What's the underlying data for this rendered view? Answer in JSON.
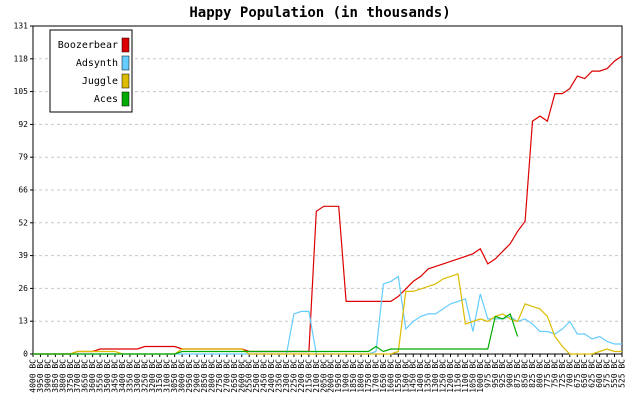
{
  "chart_data": {
    "type": "line",
    "title": "Happy Population (in thousands)",
    "categories": [
      "4000 BC",
      "3950 BC",
      "3900 BC",
      "3850 BC",
      "3800 BC",
      "3750 BC",
      "3700 BC",
      "3650 BC",
      "3600 BC",
      "3550 BC",
      "3500 BC",
      "3450 BC",
      "3400 BC",
      "3350 BC",
      "3300 BC",
      "3250 BC",
      "3200 BC",
      "3150 BC",
      "3100 BC",
      "3050 BC",
      "3000 BC",
      "2950 BC",
      "2900 BC",
      "2850 BC",
      "2800 BC",
      "2750 BC",
      "2700 BC",
      "2650 BC",
      "2600 BC",
      "2550 BC",
      "2500 BC",
      "2450 BC",
      "2400 BC",
      "2350 BC",
      "2300 BC",
      "2250 BC",
      "2200 BC",
      "2150 BC",
      "2100 BC",
      "2050 BC",
      "2000 BC",
      "1950 BC",
      "1900 BC",
      "1850 BC",
      "1800 BC",
      "1750 BC",
      "1700 BC",
      "1650 BC",
      "1600 BC",
      "1550 BC",
      "1500 BC",
      "1450 BC",
      "1400 BC",
      "1350 BC",
      "1300 BC",
      "1250 BC",
      "1200 BC",
      "1150 BC",
      "1100 BC",
      "1050 BC",
      "1000 BC",
      "975 BC",
      "950 BC",
      "925 BC",
      "900 BC",
      "875 BC",
      "850 BC",
      "825 BC",
      "800 BC",
      "775 BC",
      "750 BC",
      "725 BC",
      "700 BC",
      "675 BC",
      "650 BC",
      "625 BC",
      "600 BC",
      "575 BC",
      "550 BC",
      "525 BC"
    ],
    "series": [
      {
        "name": "Boozerbear",
        "color": "#dd0000",
        "values": [
          0,
          0,
          0,
          0,
          0,
          0,
          1,
          1,
          1,
          2,
          2,
          2,
          2,
          2,
          2,
          3,
          3,
          3,
          3,
          3,
          2,
          2,
          2,
          2,
          2,
          2,
          2,
          2,
          2,
          1,
          1,
          1,
          1,
          1,
          1,
          1,
          1,
          1,
          57,
          59,
          59,
          59,
          21,
          21,
          21,
          21,
          21,
          21,
          21,
          23,
          26,
          29,
          31,
          34,
          35,
          36,
          37,
          38,
          39,
          40,
          42,
          36,
          38,
          41,
          44,
          49,
          53,
          93,
          95,
          93,
          104,
          104,
          106,
          111,
          110,
          113,
          113,
          114,
          117,
          119
        ]
      },
      {
        "name": "Adsynth",
        "color": "#66ccff",
        "values": [
          0,
          0,
          0,
          0,
          0,
          0,
          0,
          0,
          0,
          0,
          0,
          0,
          0,
          0,
          0,
          0,
          0,
          0,
          0,
          0,
          0,
          0,
          0,
          0,
          0,
          0,
          0,
          0,
          0,
          0,
          0,
          0,
          0,
          0,
          0,
          16,
          17,
          17,
          0,
          0,
          0,
          0,
          0,
          0,
          0,
          0,
          1,
          28,
          29,
          31,
          10,
          13,
          15,
          16,
          16,
          18,
          20,
          21,
          22,
          9,
          24,
          14,
          14,
          14,
          15,
          13,
          14,
          12,
          9,
          9,
          8,
          10,
          13,
          8,
          8,
          6,
          7,
          5,
          4,
          4
        ]
      },
      {
        "name": "Juggle",
        "color": "#ddbb00",
        "values": [
          0,
          0,
          0,
          0,
          0,
          0,
          1,
          1,
          1,
          1,
          1,
          1,
          0,
          0,
          0,
          0,
          0,
          0,
          0,
          0,
          2,
          2,
          2,
          2,
          2,
          2,
          2,
          2,
          2,
          0,
          0,
          0,
          0,
          0,
          0,
          0,
          0,
          0,
          0,
          0,
          0,
          0,
          0,
          0,
          0,
          0,
          0,
          0,
          0,
          1,
          25,
          25,
          26,
          27,
          28,
          30,
          31,
          32,
          12,
          13,
          14,
          13,
          15,
          16,
          14,
          13,
          20,
          19,
          18,
          15,
          7,
          3,
          0,
          0,
          0,
          0,
          1,
          2,
          1,
          1
        ]
      },
      {
        "name": "Aces",
        "color": "#00aa00",
        "values": [
          0,
          0,
          0,
          0,
          0,
          0,
          0,
          0,
          0,
          0,
          0,
          0,
          0,
          0,
          0,
          0,
          0,
          0,
          0,
          0,
          1,
          1,
          1,
          1,
          1,
          1,
          1,
          1,
          1,
          1,
          1,
          1,
          1,
          1,
          1,
          1,
          1,
          1,
          1,
          1,
          1,
          1,
          1,
          1,
          1,
          1,
          3,
          1,
          2,
          2,
          2,
          2,
          2,
          2,
          2,
          2,
          2,
          2,
          2,
          2,
          2,
          2,
          15,
          14,
          16,
          7,
          null,
          null,
          null,
          null,
          null,
          null,
          null,
          null,
          null,
          null,
          null,
          null,
          null,
          null
        ]
      }
    ],
    "ylim": [
      0,
      131
    ],
    "yticks": [
      0,
      {
        "value": 13.1,
        "label": "13"
      },
      {
        "value": 26.2,
        "label": "26"
      },
      {
        "value": 39.3,
        "label": "39"
      },
      {
        "value": 52.4,
        "label": "52"
      },
      {
        "value": 65.5,
        "label": "66"
      },
      {
        "value": 78.6,
        "label": "79"
      },
      {
        "value": 91.7,
        "label": "92"
      },
      {
        "value": 104.8,
        "label": "105"
      },
      {
        "value": 117.9,
        "label": "118"
      },
      131
    ],
    "grid": true,
    "legend": "upper-left"
  }
}
